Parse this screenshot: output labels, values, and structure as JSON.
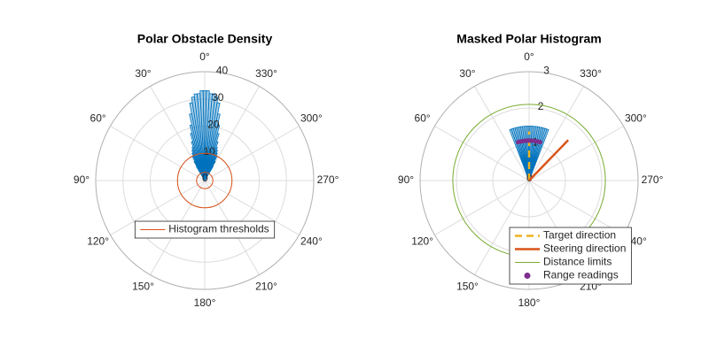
{
  "chart_data": [
    {
      "type": "polar_histogram",
      "title": "Polar Obstacle Density",
      "thetaticks": [
        {
          "value": 0,
          "label": "0°"
        },
        {
          "value": 30,
          "label": "30°"
        },
        {
          "value": 60,
          "label": "60°"
        },
        {
          "value": 90,
          "label": "90°"
        },
        {
          "value": 120,
          "label": "120°"
        },
        {
          "value": 150,
          "label": "150°"
        },
        {
          "value": 180,
          "label": "180°"
        },
        {
          "value": 210,
          "label": "210°"
        },
        {
          "value": 240,
          "label": "240°"
        },
        {
          "value": 270,
          "label": "270°"
        },
        {
          "value": 300,
          "label": "300°"
        },
        {
          "value": 330,
          "label": "330°"
        }
      ],
      "rlim": [
        0,
        40
      ],
      "rticks": [
        0,
        10,
        20,
        30,
        40
      ],
      "bins": [
        -31,
        -29,
        -27,
        -25,
        -23,
        -21,
        -19,
        -17,
        -15,
        -13,
        -11,
        -9,
        -7,
        -5,
        -3,
        -1,
        1,
        3,
        5,
        7,
        9,
        11,
        13,
        15,
        17,
        19,
        21,
        23,
        25,
        27,
        29,
        31
      ],
      "values": [
        6,
        8,
        10,
        11,
        12,
        13,
        15,
        18,
        21,
        25,
        29,
        31,
        32,
        32,
        33,
        33,
        33,
        32,
        32,
        31,
        29,
        25,
        21,
        18,
        15,
        13,
        12,
        11,
        10,
        8,
        6
      ],
      "color": "#0072bd",
      "thresholds": {
        "name": "Histogram thresholds",
        "color": "#d95319",
        "values": [
          3,
          10
        ]
      },
      "legend": "lower center"
    },
    {
      "type": "polar_histogram",
      "title": "Masked Polar Histogram",
      "thetaticks": [
        {
          "value": 0,
          "label": "0°"
        },
        {
          "value": 30,
          "label": "30°"
        },
        {
          "value": 60,
          "label": "60°"
        },
        {
          "value": 90,
          "label": "90°"
        },
        {
          "value": 120,
          "label": "120°"
        },
        {
          "value": 150,
          "label": "150°"
        },
        {
          "value": 180,
          "label": "180°"
        },
        {
          "value": 210,
          "label": "210°"
        },
        {
          "value": 240,
          "label": "240°"
        },
        {
          "value": 270,
          "label": "270°"
        },
        {
          "value": 300,
          "label": "300°"
        },
        {
          "value": 330,
          "label": "330°"
        }
      ],
      "rlim": [
        0,
        3
      ],
      "rticks": [
        0,
        1,
        2,
        3
      ],
      "bins": [
        -21,
        -19,
        -17,
        -15,
        -13,
        -11,
        -9,
        -7,
        -5,
        -3,
        -1,
        1,
        3,
        5,
        7,
        9,
        11,
        13,
        15,
        17,
        19,
        21
      ],
      "values": [
        1.5,
        1.5,
        1.5,
        1.5,
        1.5,
        1.5,
        1.5,
        1.5,
        1.5,
        1.5,
        1.5,
        1.5,
        1.5,
        1.5,
        1.5,
        1.5,
        1.5,
        1.5,
        1.5,
        1.5,
        1.5
      ],
      "color": "#0072bd",
      "lines": [
        {
          "name": "Target direction",
          "color": "#edb120",
          "dash": true,
          "theta": 0,
          "r": 1.35
        },
        {
          "name": "Steering direction",
          "color": "#d95319",
          "dash": false,
          "theta": 316,
          "r": 1.55
        }
      ],
      "limits": {
        "name": "Distance limits",
        "color": "#77ac30",
        "values": [
          2.1
        ]
      },
      "readings": {
        "name": "Range readings",
        "color": "#7e2f8e",
        "theta": [
          -16,
          -14,
          -12,
          -10,
          -8,
          -6,
          -4,
          -2,
          0,
          2,
          4,
          6,
          8,
          10,
          12,
          14,
          16
        ],
        "r": [
          1.1,
          1.1,
          1.1,
          1.1,
          1.1,
          1.1,
          1.1,
          1.1,
          1.1,
          1.1,
          1.1,
          1.1,
          1.1,
          1.1,
          1.1,
          1.1,
          1.1
        ]
      },
      "legend": "lower right"
    }
  ]
}
